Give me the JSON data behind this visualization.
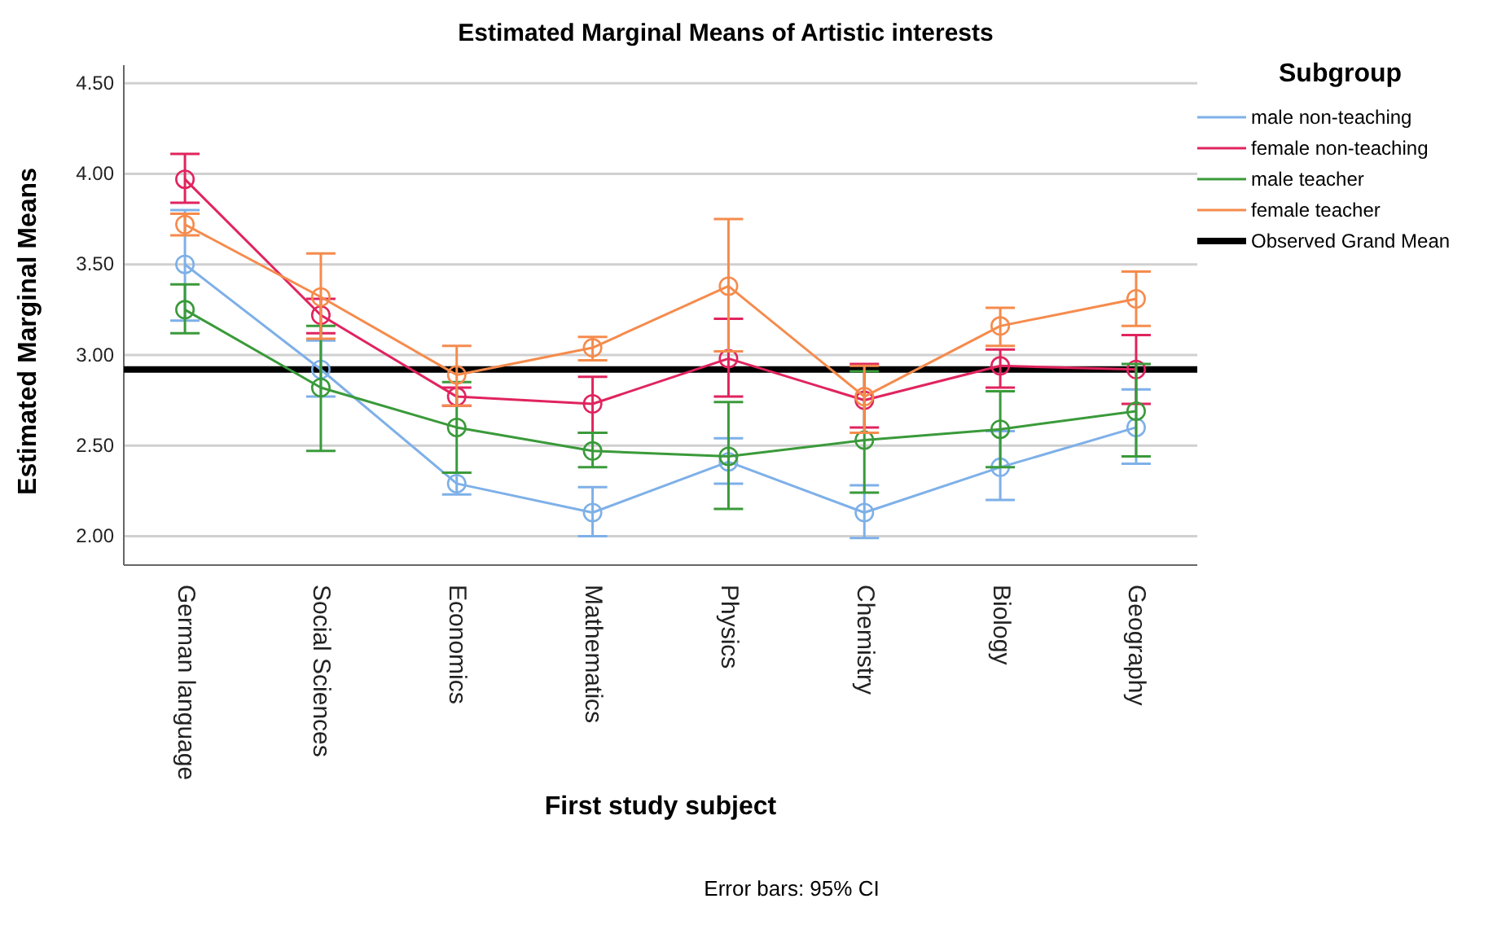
{
  "chart_data": {
    "type": "line",
    "title": "Estimated Marginal Means of Artistic interests",
    "xlabel": "First study subject",
    "ylabel": "Estimated Marginal Means",
    "legend_title": "Subgroup",
    "categories": [
      "German language",
      "Social Sciences",
      "Economics",
      "Mathematics",
      "Physics",
      "Chemistry",
      "Biology",
      "Geography"
    ],
    "series": [
      {
        "name": "male non-teaching",
        "color": "#7eb0e8",
        "values": [
          3.5,
          2.92,
          2.29,
          2.13,
          2.41,
          2.13,
          2.38,
          2.6
        ],
        "errors": [
          [
            3.19,
            3.8
          ],
          [
            2.77,
            3.08
          ],
          [
            2.23,
            2.35
          ],
          [
            2.0,
            2.27
          ],
          [
            2.29,
            2.54
          ],
          [
            1.99,
            2.28
          ],
          [
            2.2,
            2.58
          ],
          [
            2.4,
            2.81
          ]
        ]
      },
      {
        "name": "female non-teaching",
        "color": "#e0245e",
        "values": [
          3.97,
          3.22,
          2.77,
          2.73,
          2.98,
          2.75,
          2.94,
          2.92
        ],
        "errors": [
          [
            3.84,
            4.11
          ],
          [
            3.12,
            3.31
          ],
          [
            2.72,
            2.82
          ],
          [
            2.57,
            2.88
          ],
          [
            2.77,
            3.2
          ],
          [
            2.6,
            2.95
          ],
          [
            2.82,
            3.03
          ],
          [
            2.73,
            3.11
          ]
        ]
      },
      {
        "name": "male teacher",
        "color": "#3a9a3a",
        "values": [
          3.25,
          2.82,
          2.6,
          2.47,
          2.44,
          2.53,
          2.59,
          2.69
        ],
        "errors": [
          [
            3.12,
            3.39
          ],
          [
            2.47,
            3.16
          ],
          [
            2.35,
            2.85
          ],
          [
            2.38,
            2.57
          ],
          [
            2.15,
            2.74
          ],
          [
            2.24,
            2.91
          ],
          [
            2.38,
            2.8
          ],
          [
            2.44,
            2.95
          ]
        ]
      },
      {
        "name": "female teacher",
        "color": "#f58b4c",
        "values": [
          3.72,
          3.32,
          2.89,
          3.04,
          3.38,
          2.77,
          3.16,
          3.31
        ],
        "errors": [
          [
            3.66,
            3.78
          ],
          [
            3.09,
            3.56
          ],
          [
            2.72,
            3.05
          ],
          [
            2.97,
            3.1
          ],
          [
            3.02,
            3.75
          ],
          [
            2.57,
            2.94
          ],
          [
            3.05,
            3.26
          ],
          [
            3.16,
            3.46
          ]
        ]
      }
    ],
    "ref_lines": [
      {
        "axis": "y",
        "value": 2.92,
        "label": "Observed Grand Mean",
        "color": "#000000"
      }
    ],
    "ylim": [
      1.84,
      4.6
    ],
    "yticks": [
      {
        "value": 2,
        "label": "2.00"
      },
      {
        "value": 2.5,
        "label": "2.50"
      },
      {
        "value": 3,
        "label": "3.00"
      },
      {
        "value": 3.5,
        "label": "3.50"
      },
      {
        "value": 4,
        "label": "4.00"
      },
      {
        "value": 4.5,
        "label": "4.50"
      }
    ],
    "grid": "y",
    "legend": "right",
    "marker": "circle",
    "line_style": "solid",
    "annotations": [
      "Error bars: 95% CI"
    ]
  }
}
